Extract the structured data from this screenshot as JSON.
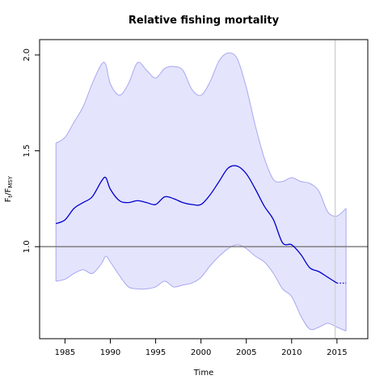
{
  "chart_data": {
    "type": "line",
    "title": "Relative fishing mortality",
    "xlabel": "Time",
    "ylabel": {
      "base": "F",
      "sub1": "t",
      "mid": "/F",
      "sub2": "MSY"
    },
    "xlim": [
      1982.2,
      2018.4
    ],
    "ylim": [
      0.52,
      2.08
    ],
    "xticks": [
      1985,
      1990,
      1995,
      2000,
      2005,
      2010,
      2015
    ],
    "yticks": [
      1.0,
      1.5,
      2.0
    ],
    "ytick_labels": [
      "1.0",
      "1.5",
      "2.0"
    ],
    "reference_line": {
      "y": 1.0,
      "color": "#808080"
    },
    "vertical_marker": {
      "x": 2014.8,
      "color": "#d3d3d3"
    },
    "colors": {
      "median": "#0000cd",
      "band_fill": "#e4e4fd",
      "band_line": "#a8a8f0"
    },
    "series": [
      {
        "role": "median",
        "x": [
          1984,
          1985,
          1986,
          1987,
          1988,
          1989,
          1989.5,
          1990,
          1991,
          1992,
          1993,
          1994,
          1995,
          1996,
          1997,
          1998,
          1999,
          2000,
          2001,
          2002,
          2003,
          2004,
          2005,
          2006,
          2007,
          2008,
          2009,
          2010,
          2011,
          2012,
          2013,
          2014,
          2015
        ],
        "y": [
          1.12,
          1.14,
          1.2,
          1.23,
          1.26,
          1.34,
          1.36,
          1.3,
          1.24,
          1.23,
          1.24,
          1.23,
          1.22,
          1.26,
          1.25,
          1.23,
          1.22,
          1.22,
          1.27,
          1.34,
          1.41,
          1.42,
          1.38,
          1.3,
          1.21,
          1.14,
          1.02,
          1.01,
          0.96,
          0.89,
          0.87,
          0.84,
          0.81
        ]
      },
      {
        "role": "projection",
        "x": [
          2015,
          2016
        ],
        "y": [
          0.81,
          0.81
        ]
      },
      {
        "role": "upper",
        "x": [
          1984,
          1985,
          1986,
          1987,
          1988,
          1989,
          1989.5,
          1990,
          1991,
          1992,
          1993,
          1994,
          1995,
          1996,
          1997,
          1998,
          1999,
          2000,
          2001,
          2002,
          2003,
          2004,
          2005,
          2006,
          2007,
          2008,
          2009,
          2010,
          2011,
          2012,
          2013,
          2014,
          2015,
          2016
        ],
        "y": [
          1.54,
          1.57,
          1.65,
          1.73,
          1.85,
          1.95,
          1.95,
          1.85,
          1.79,
          1.85,
          1.96,
          1.92,
          1.88,
          1.93,
          1.94,
          1.92,
          1.82,
          1.79,
          1.86,
          1.97,
          2.01,
          1.98,
          1.83,
          1.63,
          1.46,
          1.35,
          1.34,
          1.36,
          1.34,
          1.33,
          1.29,
          1.18,
          1.16,
          1.2
        ]
      },
      {
        "role": "lower",
        "x": [
          1984,
          1985,
          1986,
          1987,
          1988,
          1989,
          1989.5,
          1990,
          1991,
          1992,
          1993,
          1994,
          1995,
          1996,
          1997,
          1998,
          1999,
          2000,
          2001,
          2002,
          2003,
          2004,
          2005,
          2006,
          2007,
          2008,
          2009,
          2010,
          2011,
          2012,
          2013,
          2014,
          2015,
          2016
        ],
        "y": [
          0.82,
          0.83,
          0.86,
          0.88,
          0.86,
          0.91,
          0.95,
          0.92,
          0.85,
          0.79,
          0.78,
          0.78,
          0.79,
          0.82,
          0.79,
          0.8,
          0.81,
          0.84,
          0.9,
          0.95,
          0.99,
          1.01,
          0.99,
          0.95,
          0.92,
          0.86,
          0.78,
          0.74,
          0.64,
          0.57,
          0.58,
          0.6,
          0.58,
          0.56
        ]
      }
    ]
  }
}
